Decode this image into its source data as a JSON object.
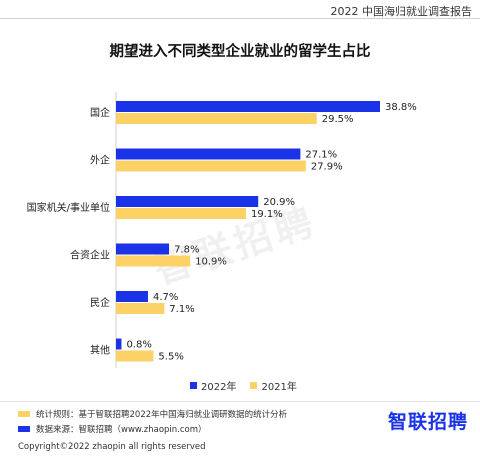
{
  "header": {
    "report_title": "2022 中国海归就业调查报告"
  },
  "colors": {
    "series_2022": "#1b33e6",
    "series_2021": "#fcd267"
  },
  "chart_data": {
    "type": "bar",
    "orientation": "horizontal",
    "title": "期望进入不同类型企业就业的留学生占比",
    "categories": [
      "国企",
      "外企",
      "国家机关/事业单位",
      "合资企业",
      "民企",
      "其他"
    ],
    "series": [
      {
        "name": "2022年",
        "values": [
          38.8,
          27.1,
          20.9,
          7.8,
          4.7,
          0.8
        ],
        "labels": [
          "38.8%",
          "27.1%",
          "20.9%",
          "7.8%",
          "4.7%",
          "0.8%"
        ]
      },
      {
        "name": "2021年",
        "values": [
          29.5,
          27.9,
          19.1,
          10.9,
          7.1,
          5.5
        ],
        "labels": [
          "29.5%",
          "27.9%",
          "19.1%",
          "10.9%",
          "7.1%",
          "5.5%"
        ]
      }
    ],
    "xlim": [
      0,
      40
    ],
    "grid": false,
    "legend_position": "bottom"
  },
  "watermark": "智联招聘",
  "footer": {
    "note_stats": "统计规则：基于智联招聘2022年中国海归就业调研数据的统计分析",
    "note_source": "数据来源：智联招聘（www.zhaopin.com）",
    "logo": "智联招聘",
    "copyright": "Copyright©2022 zhaopin all rights reserved"
  }
}
